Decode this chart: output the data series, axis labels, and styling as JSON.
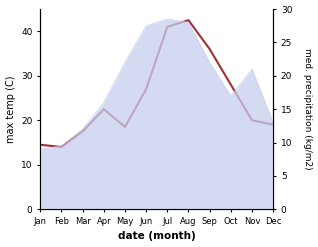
{
  "months": [
    "Jan",
    "Feb",
    "Mar",
    "Apr",
    "May",
    "Jun",
    "Jul",
    "Aug",
    "Sep",
    "Oct",
    "Nov",
    "Dec"
  ],
  "month_indices": [
    1,
    2,
    3,
    4,
    5,
    6,
    7,
    8,
    9,
    10,
    11,
    12
  ],
  "max_temp": [
    14.5,
    14.0,
    17.5,
    22.5,
    18.5,
    27.0,
    41.0,
    42.5,
    36.0,
    28.0,
    20.0,
    19.0
  ],
  "precipitation": [
    9.0,
    9.5,
    12.0,
    16.0,
    22.0,
    27.5,
    28.5,
    28.0,
    22.0,
    17.0,
    21.0,
    13.0
  ],
  "temp_color": "#a03030",
  "precip_fill_color": "#c8cef0",
  "precip_fill_alpha": 0.75,
  "temp_ylim": [
    0,
    45
  ],
  "precip_ylim": [
    0,
    30
  ],
  "temp_yticks": [
    0,
    10,
    20,
    30,
    40
  ],
  "precip_yticks": [
    0,
    5,
    10,
    15,
    20,
    25,
    30
  ],
  "xlabel": "date (month)",
  "ylabel_left": "max temp (C)",
  "ylabel_right": "med. precipitation (kg/m2)",
  "figsize": [
    3.18,
    2.47
  ],
  "dpi": 100
}
